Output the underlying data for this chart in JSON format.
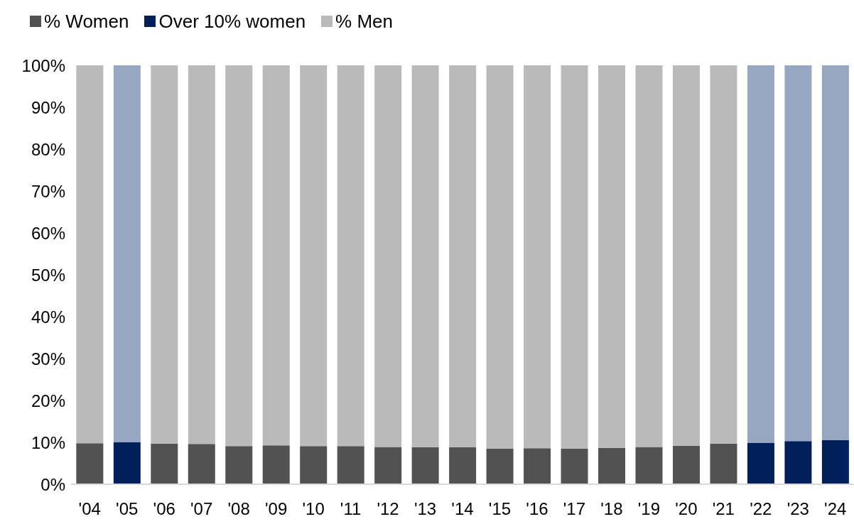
{
  "chart_data": {
    "type": "bar",
    "stacked": true,
    "categories": [
      "'04",
      "'05",
      "'06",
      "'07",
      "'08",
      "'09",
      "'10",
      "'11",
      "'12",
      "'13",
      "'14",
      "'15",
      "'16",
      "'17",
      "'18",
      "'19",
      "'20",
      "'21",
      "'22",
      "'23",
      "'24"
    ],
    "series": [
      {
        "name": "% Women",
        "color": "#525252",
        "values": [
          9.8,
          null,
          9.7,
          9.6,
          9.1,
          9.3,
          9.1,
          9.1,
          8.9,
          8.8,
          8.8,
          8.5,
          8.6,
          8.5,
          8.7,
          8.9,
          9.2,
          9.7,
          null,
          null,
          null
        ]
      },
      {
        "name": "Over 10% women",
        "color": "#001f5b",
        "values": [
          null,
          10.0,
          null,
          null,
          null,
          null,
          null,
          null,
          null,
          null,
          null,
          null,
          null,
          null,
          null,
          null,
          null,
          null,
          9.9,
          10.3,
          10.5
        ]
      },
      {
        "name": "% Men",
        "color": "#bababa",
        "colors": [
          "#bababa",
          "#97a6c1",
          "#bababa",
          "#bababa",
          "#bababa",
          "#bababa",
          "#bababa",
          "#bababa",
          "#bababa",
          "#bababa",
          "#bababa",
          "#bababa",
          "#bababa",
          "#bababa",
          "#bababa",
          "#bababa",
          "#bababa",
          "#bababa",
          "#97a6c1",
          "#97a6c1",
          "#97a6c1"
        ],
        "values": [
          90.2,
          90.0,
          90.3,
          90.4,
          90.9,
          90.7,
          90.9,
          90.9,
          91.1,
          91.2,
          91.2,
          91.5,
          91.4,
          91.5,
          91.3,
          91.1,
          90.8,
          90.3,
          90.1,
          89.7,
          89.5
        ]
      }
    ],
    "ylim": [
      0,
      100
    ],
    "yticks": [
      {
        "value": 0,
        "label": "0%"
      },
      {
        "value": 10,
        "label": "10%"
      },
      {
        "value": 20,
        "label": "20%"
      },
      {
        "value": 30,
        "label": "30%"
      },
      {
        "value": 40,
        "label": "40%"
      },
      {
        "value": 50,
        "label": "50%"
      },
      {
        "value": 60,
        "label": "60%"
      },
      {
        "value": 70,
        "label": "70%"
      },
      {
        "value": 80,
        "label": "80%"
      },
      {
        "value": 90,
        "label": "90%"
      },
      {
        "value": 100,
        "label": "100%"
      }
    ],
    "grid": false,
    "legend": "top left"
  }
}
